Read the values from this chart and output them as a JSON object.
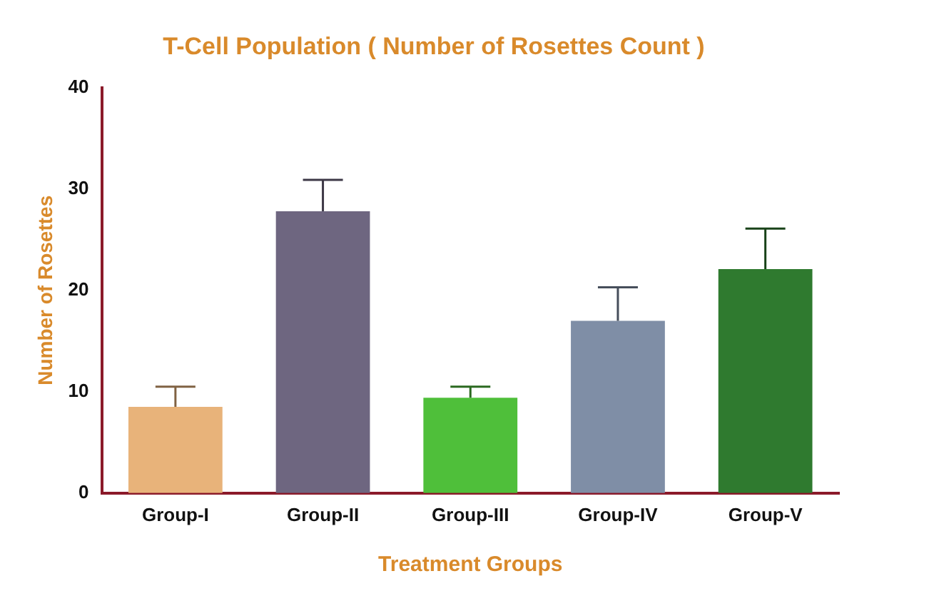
{
  "chart_data": {
    "type": "bar",
    "title": "T-Cell Population ( Number of Rosettes Count )",
    "xlabel": "Treatment Groups",
    "ylabel": "Number of Rosettes",
    "categories": [
      "Group-I",
      "Group-II",
      "Group-III",
      "Group-IV",
      "Group-V"
    ],
    "values": [
      8.5,
      27.8,
      9.4,
      17.0,
      22.1
    ],
    "errors": [
      [
        8.5,
        10.5
      ],
      [
        27.8,
        30.9
      ],
      [
        9.4,
        10.5
      ],
      [
        17.0,
        20.3
      ],
      [
        22.1,
        26.1
      ]
    ],
    "colors": [
      "#e8b37a",
      "#6e6680",
      "#4fbf3a",
      "#7f8ea6",
      "#2f7a2f"
    ],
    "ylim": [
      0,
      40
    ],
    "yticks": [
      0,
      10,
      20,
      30,
      40
    ],
    "grid": false,
    "legend": false
  }
}
